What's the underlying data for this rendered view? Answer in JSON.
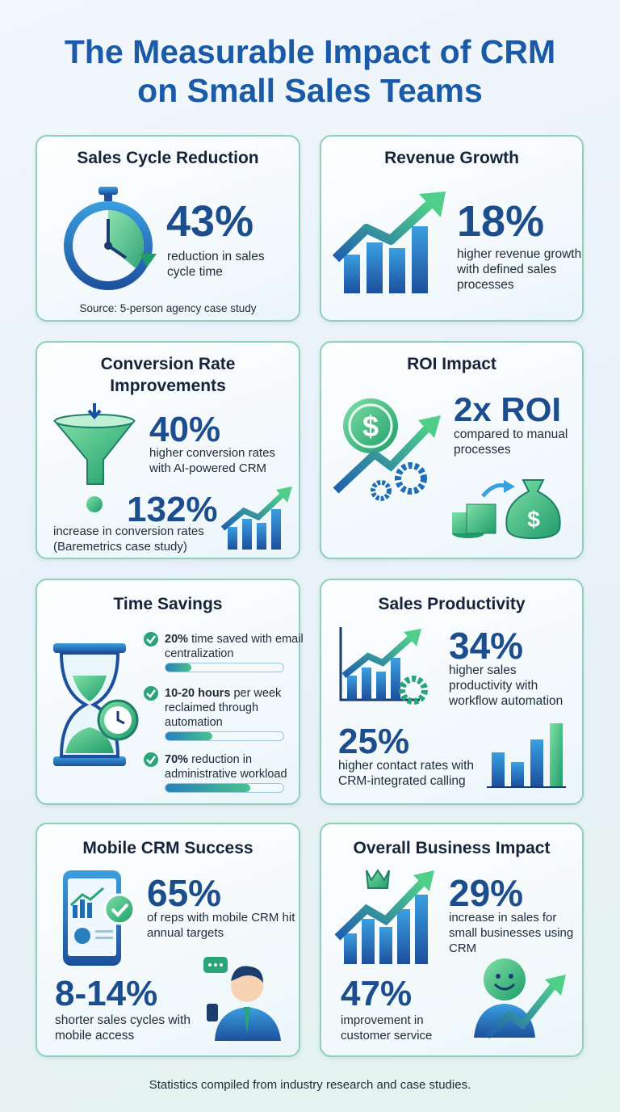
{
  "header": {
    "title": "The Measurable Impact of CRM on Small Sales Teams"
  },
  "cards": [
    {
      "title": "Sales Cycle Reduction",
      "stats": [
        {
          "value": "43%",
          "text": "reduction in sales cycle time"
        }
      ],
      "source": "Source: 5-person agency case study"
    },
    {
      "title": "Revenue Growth",
      "stats": [
        {
          "value": "18%",
          "text": "higher revenue growth with defined sales processes"
        }
      ]
    },
    {
      "title": "Conversion Rate Improvements",
      "stats": [
        {
          "value": "40%",
          "text": "higher conversion rates with AI-powered CRM"
        },
        {
          "value": "132%",
          "text": "increase in conversion rates (Baremetrics case study)"
        }
      ]
    },
    {
      "title": "ROI Impact",
      "stats": [
        {
          "value": "2x ROI",
          "text": "compared to manual processes"
        }
      ]
    },
    {
      "title": "Time Savings",
      "items": [
        {
          "highlight": "20%",
          "text": "time saved with email centralization"
        },
        {
          "highlight": "10-20 hours",
          "text": "per week reclaimed through automation"
        },
        {
          "highlight": "70%",
          "text": "reduction in administrative workload"
        }
      ]
    },
    {
      "title": "Sales Productivity",
      "stats": [
        {
          "value": "34%",
          "text": "higher sales productivity with workflow automation"
        },
        {
          "value": "25%",
          "text": "higher contact rates with CRM-integrated calling"
        }
      ]
    },
    {
      "title": "Mobile CRM Success",
      "stats": [
        {
          "value": "65%",
          "text": "of reps with mobile CRM hit annual targets"
        },
        {
          "value": "8-14%",
          "text": "shorter sales cycles with mobile access"
        }
      ]
    },
    {
      "title": "Overall Business Impact",
      "stats": [
        {
          "value": "29%",
          "text": "increase in sales for small businesses using CRM"
        },
        {
          "value": "47%",
          "text": "improvement in customer service"
        }
      ]
    }
  ],
  "footer": "Statistics compiled from industry research and case studies."
}
